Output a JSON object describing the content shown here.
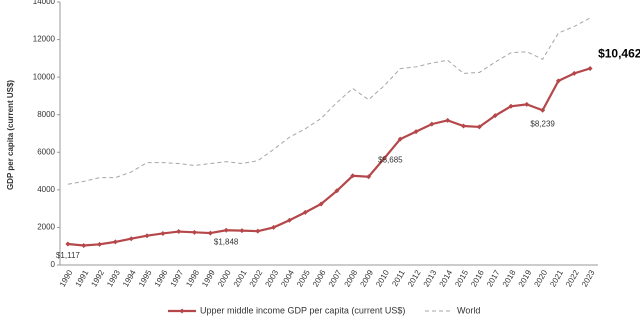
{
  "chart_data": {
    "type": "line",
    "y_label": "GDP per capita (current US$)",
    "categories": [
      "1990",
      "1991",
      "1992",
      "1993",
      "1994",
      "1995",
      "1996",
      "1997",
      "1998",
      "1999",
      "2000",
      "2001",
      "2002",
      "2003",
      "2004",
      "2005",
      "2006",
      "2007",
      "2008",
      "2009",
      "2010",
      "2011",
      "2012",
      "2013",
      "2014",
      "2015",
      "2016",
      "2017",
      "2018",
      "2019",
      "2020",
      "2021",
      "2022",
      "2023"
    ],
    "series": [
      {
        "name": "Upper middle income GDP per capita (current US$)",
        "color": "#b5474a",
        "style": "solid",
        "markers": true,
        "values": [
          1117,
          1040,
          1100,
          1230,
          1400,
          1560,
          1680,
          1780,
          1740,
          1700,
          1848,
          1830,
          1800,
          2000,
          2380,
          2800,
          3250,
          3950,
          4750,
          4700,
          5685,
          6700,
          7100,
          7500,
          7700,
          7400,
          7350,
          7950,
          8450,
          8550,
          8239,
          9800,
          10200,
          10462
        ],
        "value_labels": [
          "$1,117",
          null,
          null,
          null,
          null,
          null,
          null,
          null,
          null,
          null,
          "$1,848",
          null,
          null,
          null,
          null,
          null,
          null,
          null,
          null,
          null,
          "$5,685",
          null,
          null,
          null,
          null,
          null,
          null,
          null,
          null,
          null,
          "$8,239",
          null,
          null,
          "$10,462"
        ]
      },
      {
        "name": "World",
        "color": "#a6a6a6",
        "style": "dashed",
        "markers": false,
        "values": [
          4300,
          4450,
          4650,
          4650,
          4950,
          5450,
          5450,
          5400,
          5300,
          5400,
          5500,
          5400,
          5550,
          6150,
          6800,
          7250,
          7800,
          8650,
          9400,
          8800,
          9550,
          10450,
          10550,
          10750,
          10900,
          10200,
          10250,
          10800,
          11300,
          11350,
          10950,
          12350,
          12700,
          13150
        ]
      }
    ],
    "ylim": [
      0,
      14000
    ],
    "yticks": [
      0,
      2000,
      4000,
      6000,
      8000,
      10000,
      12000,
      14000
    ],
    "grid": false,
    "legend": "bottom"
  }
}
